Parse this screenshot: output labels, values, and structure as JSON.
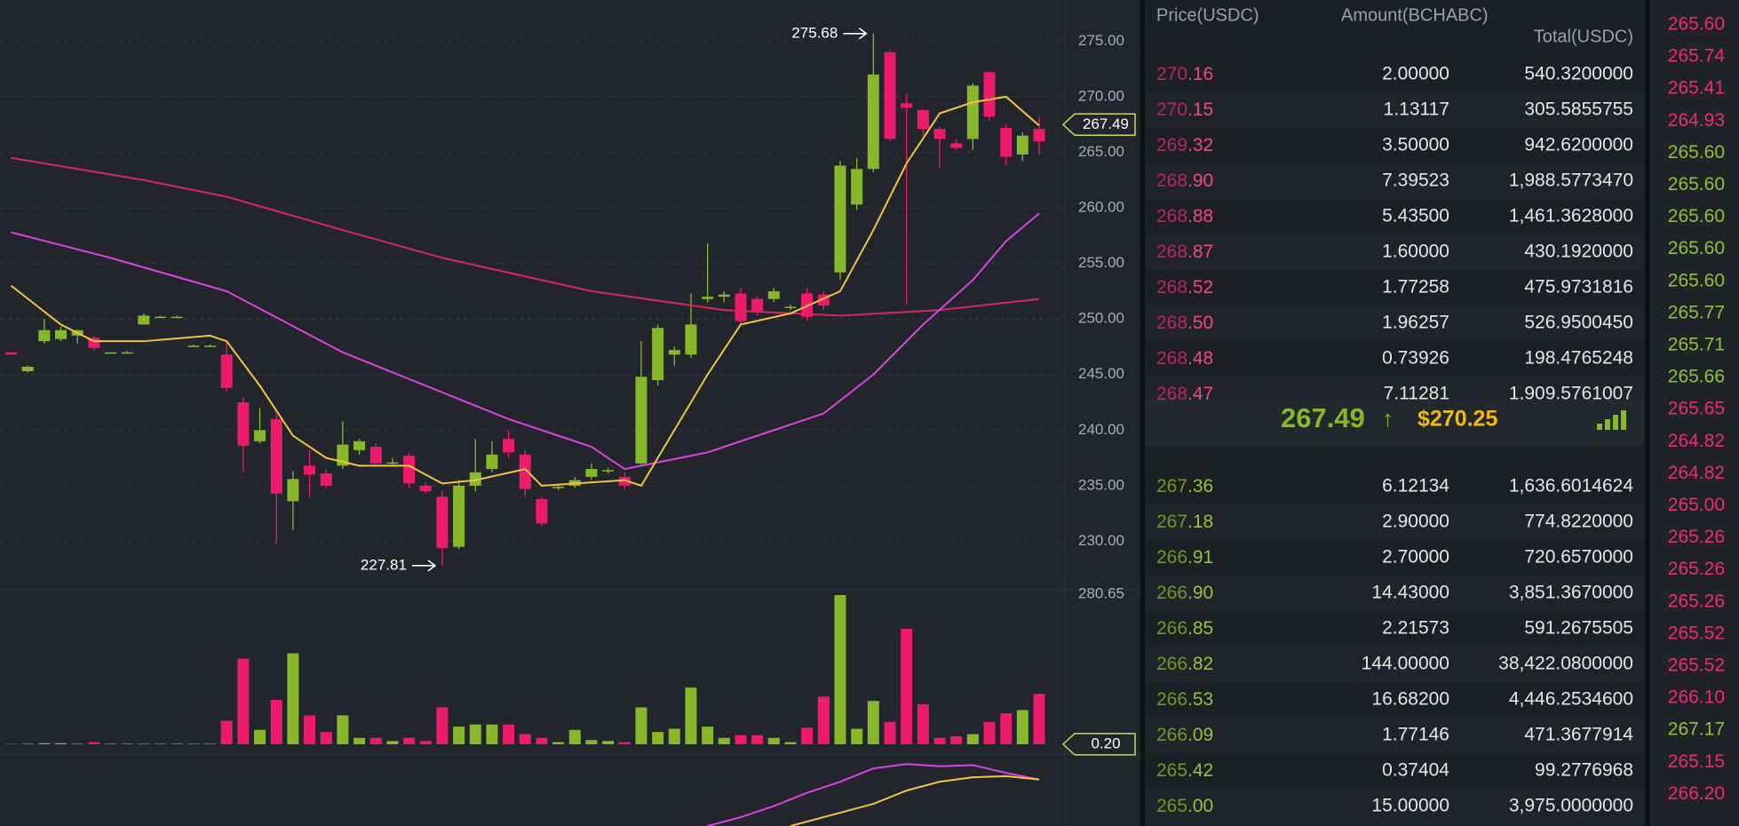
{
  "chart_data": [
    {
      "type": "candlestick",
      "up_color": "#86b82a",
      "down_color": "#ee1b6b",
      "grid": true,
      "ylim": [
        225.8,
        278.7
      ],
      "yticks": [
        {
          "value": 230,
          "label": "230.00"
        },
        {
          "value": 235,
          "label": "235.00"
        },
        {
          "value": 240,
          "label": "240.00"
        },
        {
          "value": 245,
          "label": "245.00"
        },
        {
          "value": 250,
          "label": "250.00"
        },
        {
          "value": 255,
          "label": "255.00"
        },
        {
          "value": 260,
          "label": "260.00"
        },
        {
          "value": 265,
          "label": "265.00"
        },
        {
          "value": 270,
          "label": "270.00"
        },
        {
          "value": 275,
          "label": "275.00"
        }
      ],
      "open": [
        247,
        245.3,
        248,
        248.2,
        248.5,
        248.3,
        247,
        247,
        249.5,
        250.2,
        250.2,
        247.6,
        247.6,
        246.8,
        242.5,
        239,
        241,
        233.6,
        236.8,
        236.1,
        236.8,
        238.2,
        238.5,
        237,
        237.7,
        235,
        234,
        229.5,
        235,
        236.5,
        239.2,
        237.8,
        233.8,
        234.8,
        235,
        235.8,
        236.3,
        235.8,
        237,
        244.5,
        246.8,
        246.8,
        251.8,
        252,
        252.3,
        251.8,
        251.8,
        251,
        252.3,
        252.2,
        254.2,
        260.3,
        263.5,
        274,
        269.4,
        268.8,
        267.1,
        265.8,
        266.2,
        272.2,
        267.2,
        264.8,
        267.1
      ],
      "high": [
        247,
        245.8,
        250,
        249.3,
        249,
        248.5,
        247,
        247.1,
        250.5,
        250.3,
        250.3,
        247.7,
        247.7,
        248,
        243,
        242,
        241.5,
        236.3,
        238.2,
        236.5,
        240.8,
        239.2,
        238.8,
        237.5,
        238,
        235.3,
        234.5,
        235.5,
        239.2,
        239,
        240,
        238.2,
        234,
        235.1,
        235.8,
        237,
        236.6,
        236.2,
        248,
        249.5,
        247.5,
        252.3,
        256.8,
        252.5,
        252.8,
        252,
        252.8,
        251.3,
        252.8,
        252.5,
        264.2,
        264.5,
        275.68,
        274.2,
        270.3,
        268.9,
        267.3,
        266.2,
        271.2,
        272.3,
        267.5,
        266.8,
        268.2
      ],
      "low": [
        246.8,
        245.2,
        247.8,
        248,
        247.8,
        247.2,
        247,
        246.9,
        249.5,
        250.1,
        250.1,
        247.5,
        247.5,
        243.5,
        236.2,
        238.8,
        229.8,
        231,
        234,
        234.8,
        236.5,
        237.8,
        236.8,
        236.8,
        234.8,
        234.3,
        227.81,
        229.3,
        234.5,
        236.2,
        237.5,
        234,
        231.4,
        234.6,
        234.8,
        235.5,
        236.1,
        234.7,
        236.8,
        244,
        245.8,
        246.5,
        251.5,
        251.5,
        249.5,
        250.3,
        251.5,
        250.8,
        249.8,
        250.8,
        253.5,
        259.8,
        263.2,
        266,
        251.3,
        266.5,
        263.6,
        265.2,
        265.2,
        267.8,
        263.8,
        264.2,
        264.8
      ],
      "close": [
        246.8,
        245.7,
        249,
        249,
        249,
        247.4,
        247,
        247,
        250.3,
        250.2,
        250.2,
        247.6,
        247.6,
        243.8,
        238.6,
        240,
        234.3,
        235.6,
        236,
        235,
        238.7,
        239,
        237,
        237.1,
        235.2,
        234.5,
        229.4,
        235,
        236.2,
        237.8,
        238,
        234.7,
        231.6,
        234.9,
        235.5,
        236.5,
        236.4,
        235,
        244.8,
        249.2,
        247.2,
        249.5,
        252,
        252.2,
        249.8,
        250.6,
        252.5,
        251.1,
        250.2,
        251.2,
        263.8,
        263.5,
        272,
        266.2,
        269,
        267.1,
        266.2,
        265.4,
        271,
        268.2,
        264.6,
        266.5,
        266
      ],
      "series": [
        {
          "color": "#d6265f",
          "x": [
            0,
            8,
            13,
            20,
            26,
            35,
            43,
            50,
            56,
            62
          ],
          "values": [
            264.5,
            262.5,
            261,
            258,
            255.5,
            252.5,
            250.8,
            250.3,
            250.8,
            251.8
          ]
        },
        {
          "color": "#e040e8",
          "x": [
            0,
            6,
            13,
            20,
            25,
            30,
            35,
            37,
            42,
            47,
            49,
            52,
            55,
            58,
            60,
            62
          ],
          "values": [
            257.8,
            255.5,
            252.5,
            247,
            244,
            241,
            238.5,
            236.5,
            238,
            240.5,
            241.5,
            245,
            249.5,
            253.5,
            257,
            259.5
          ]
        },
        {
          "color": "#f5c242",
          "x": [
            0,
            3,
            5,
            8,
            12,
            13,
            15,
            17,
            19,
            21,
            24,
            26,
            28,
            31,
            32,
            34,
            37,
            38,
            40,
            42,
            44,
            47,
            50,
            52,
            54,
            56,
            58,
            60,
            62
          ],
          "values": [
            253,
            249.5,
            248,
            248,
            248.5,
            248,
            244,
            239.5,
            237.5,
            236.8,
            236.8,
            235.2,
            235.5,
            236.5,
            235,
            235.2,
            235.5,
            235,
            240,
            245,
            249.5,
            250.5,
            252.5,
            258,
            264,
            268.5,
            269.5,
            270,
            267.4
          ]
        }
      ],
      "annotations": [
        {
          "value": 275.68,
          "x": 52
        },
        {
          "value": 227.81,
          "x": 26
        }
      ],
      "last_price": 267.49
    },
    {
      "type": "bar",
      "ylim": [
        0,
        280.65
      ],
      "yticks": [
        280.65
      ],
      "values": [
        1,
        1,
        2,
        2,
        1,
        4,
        1,
        1,
        1,
        1,
        1,
        1,
        1,
        44,
        160,
        27,
        83,
        170,
        54,
        23,
        54,
        12,
        12,
        6,
        12,
        6,
        69,
        33,
        37,
        37,
        37,
        19,
        12,
        4,
        27,
        8,
        6,
        4,
        69,
        23,
        29,
        106,
        33,
        12,
        17,
        17,
        12,
        4,
        31,
        89,
        279,
        29,
        81,
        42,
        216,
        75,
        12,
        15,
        19,
        42,
        58,
        64,
        94
      ],
      "last_value": {
        "value": 0.2,
        "label": "0.20"
      }
    },
    {
      "type": "line",
      "ylim": [
        0,
        65
      ],
      "series": [
        {
          "color": "#e040e8",
          "x": [
            42,
            44,
            46,
            48,
            50,
            52,
            54,
            56,
            58,
            60,
            62
          ],
          "values": [
            0,
            8,
            18,
            30,
            40,
            52,
            56,
            54,
            55,
            48,
            42
          ]
        },
        {
          "color": "#f5c242",
          "x": [
            47,
            50,
            52,
            54,
            56,
            58,
            60,
            62
          ],
          "values": [
            0,
            12,
            20,
            32,
            40,
            44,
            45,
            42
          ]
        }
      ]
    }
  ],
  "order_book": {
    "headers": [
      "Price(USDC)",
      "Amount(BCHABC)",
      "Total(USDC)"
    ],
    "asks": [
      [
        "270.16",
        "2.00000",
        "540.3200000"
      ],
      [
        "270.15",
        "1.13117",
        "305.5855755"
      ],
      [
        "269.32",
        "3.50000",
        "942.6200000"
      ],
      [
        "268.90",
        "7.39523",
        "1,988.5773470"
      ],
      [
        "268.88",
        "5.43500",
        "1,461.3628000"
      ],
      [
        "268.87",
        "1.60000",
        "430.1920000"
      ],
      [
        "268.52",
        "1.77258",
        "475.9731816"
      ],
      [
        "268.50",
        "1.96257",
        "526.9500450"
      ],
      [
        "268.48",
        "0.73926",
        "198.4765248"
      ],
      [
        "268.47",
        "7.11281",
        "1,909.5761007"
      ]
    ],
    "bids": [
      [
        "267.36",
        "6.12134",
        "1,636.6014624"
      ],
      [
        "267.18",
        "2.90000",
        "774.8220000"
      ],
      [
        "266.91",
        "2.70000",
        "720.6570000"
      ],
      [
        "266.90",
        "14.43000",
        "3,851.3670000"
      ],
      [
        "266.85",
        "2.21573",
        "591.2675505"
      ],
      [
        "266.82",
        "144.00000",
        "38,422.0800000"
      ],
      [
        "266.53",
        "16.68200",
        "4,446.2534600"
      ],
      [
        "266.09",
        "1.77146",
        "471.3677914"
      ],
      [
        "265.42",
        "0.37404",
        "99.2776968"
      ],
      [
        "265.00",
        "15.00000",
        "3,975.0000000"
      ]
    ],
    "last_price": "267.49",
    "arrow": "↑",
    "index_price": "$270.25"
  },
  "trades": [
    {
      "price": "265.60",
      "side": "sell"
    },
    {
      "price": "265.74",
      "side": "sell"
    },
    {
      "price": "265.41",
      "side": "sell"
    },
    {
      "price": "264.93",
      "side": "sell"
    },
    {
      "price": "265.60",
      "side": "buy"
    },
    {
      "price": "265.60",
      "side": "buy"
    },
    {
      "price": "265.60",
      "side": "buy"
    },
    {
      "price": "265.60",
      "side": "buy"
    },
    {
      "price": "265.60",
      "side": "buy"
    },
    {
      "price": "265.77",
      "side": "buy"
    },
    {
      "price": "265.71",
      "side": "buy"
    },
    {
      "price": "265.66",
      "side": "buy"
    },
    {
      "price": "265.65",
      "side": "sell"
    },
    {
      "price": "264.82",
      "side": "sell"
    },
    {
      "price": "264.82",
      "side": "sell"
    },
    {
      "price": "265.00",
      "side": "sell"
    },
    {
      "price": "265.26",
      "side": "sell"
    },
    {
      "price": "265.26",
      "side": "sell"
    },
    {
      "price": "265.26",
      "side": "sell"
    },
    {
      "price": "265.52",
      "side": "sell"
    },
    {
      "price": "265.52",
      "side": "sell"
    },
    {
      "price": "266.10",
      "side": "sell"
    },
    {
      "price": "267.17",
      "side": "buy"
    },
    {
      "price": "265.15",
      "side": "sell"
    },
    {
      "price": "266.20",
      "side": "sell"
    }
  ]
}
